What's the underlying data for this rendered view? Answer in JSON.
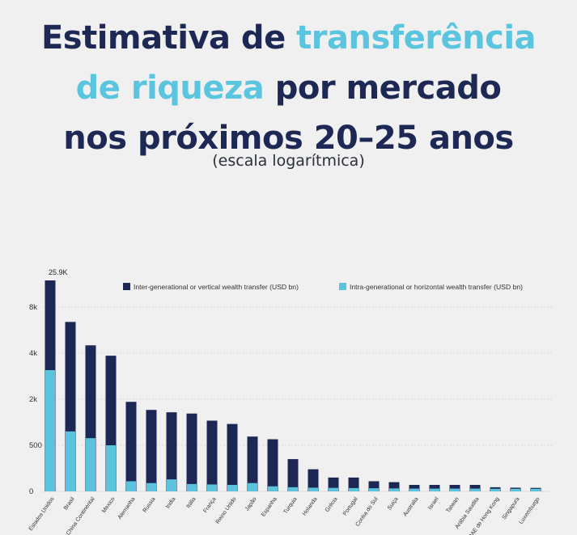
{
  "title": {
    "line1_a": "Estimativa de ",
    "line1_b": "transferência",
    "line2_a": "de riqueza",
    "line2_b": " por mercado",
    "line3": "nos próximos 20–25 anos"
  },
  "subtitle": "(escala logarítmica)",
  "colors": {
    "inter": "#1c2753",
    "intra": "#5cc3de",
    "title": "#1d2854",
    "accent": "#5bc4de"
  },
  "chart_data": {
    "type": "bar",
    "scale": "log",
    "grid": true,
    "legend_position": "top",
    "categories": [
      "Estados Unidos",
      "Brasil",
      "China Continental",
      "Mexico",
      "Alemanha",
      "Russia",
      "India",
      "Itália",
      "França",
      "Reino Unido",
      "Japão",
      "Espanha",
      "Turquia",
      "Holanda",
      "Grécia",
      "Portugal",
      "Coréia do Sul",
      "Suiça",
      "Australia",
      "Israel",
      "Taiwan",
      "Arábia Saudita",
      "RAE de Hong Kong",
      "Singapura",
      "Luxemburgo"
    ],
    "yticks": [
      {
        "value": 0,
        "label": "0"
      },
      {
        "value": 500,
        "label": "500"
      },
      {
        "value": 2000,
        "label": "2k"
      },
      {
        "value": 4000,
        "label": "4k"
      },
      {
        "value": 8000,
        "label": "8k"
      }
    ],
    "series": [
      {
        "name": "Inter-generational or vertical wealth transfer (USD bn)",
        "color": "#1c2753",
        "values": [
          25900,
          6400,
          4500,
          3850,
          1850,
          1450,
          1350,
          1300,
          1050,
          950,
          650,
          600,
          350,
          240,
          150,
          150,
          110,
          100,
          70,
          70,
          70,
          70,
          45,
          40,
          38
        ]
      },
      {
        "name": "Intra-generational or horizontal wealth transfer (USD bn)",
        "color": "#5cc3de",
        "values": [
          3100,
          760,
          620,
          500,
          110,
          90,
          130,
          80,
          75,
          70,
          90,
          55,
          45,
          40,
          38,
          36,
          34,
          32,
          30,
          30,
          30,
          30,
          28,
          28,
          28
        ]
      }
    ],
    "annotations": [
      {
        "category": "Estados Unidos",
        "text": "25.9K"
      }
    ]
  }
}
